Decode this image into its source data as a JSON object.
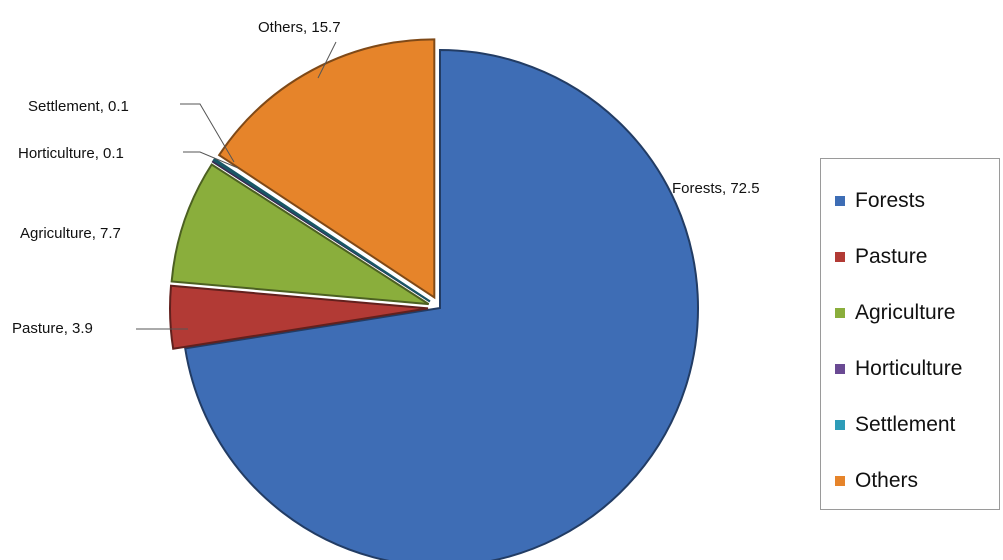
{
  "chart_data": {
    "type": "pie",
    "title": "",
    "slices": [
      {
        "label": "Forests",
        "value": 72.5,
        "data_label": "Forests, 72.5",
        "color": "#3E6DB5",
        "exploded": false
      },
      {
        "label": "Pasture",
        "value": 3.9,
        "data_label": "Pasture, 3.9",
        "color": "#B23A35",
        "exploded": true
      },
      {
        "label": "Agriculture",
        "value": 7.7,
        "data_label": "Agriculture, 7.7",
        "color": "#8AAE3C",
        "exploded": true
      },
      {
        "label": "Horticulture",
        "value": 0.1,
        "data_label": "Horticulture, 0.1",
        "color": "#6A4A93",
        "exploded": true
      },
      {
        "label": "Settlement",
        "value": 0.1,
        "data_label": "Settlement, 0.1",
        "color": "#2E9CB8",
        "exploded": true
      },
      {
        "label": "Others",
        "value": 15.7,
        "data_label": "Others, 15.7",
        "color": "#E6842A",
        "exploded": true
      }
    ],
    "legend": {
      "placement": "right",
      "entries": [
        "Forests",
        "Pasture",
        "Agriculture",
        "Horticulture",
        "Settlement",
        "Others"
      ]
    }
  }
}
